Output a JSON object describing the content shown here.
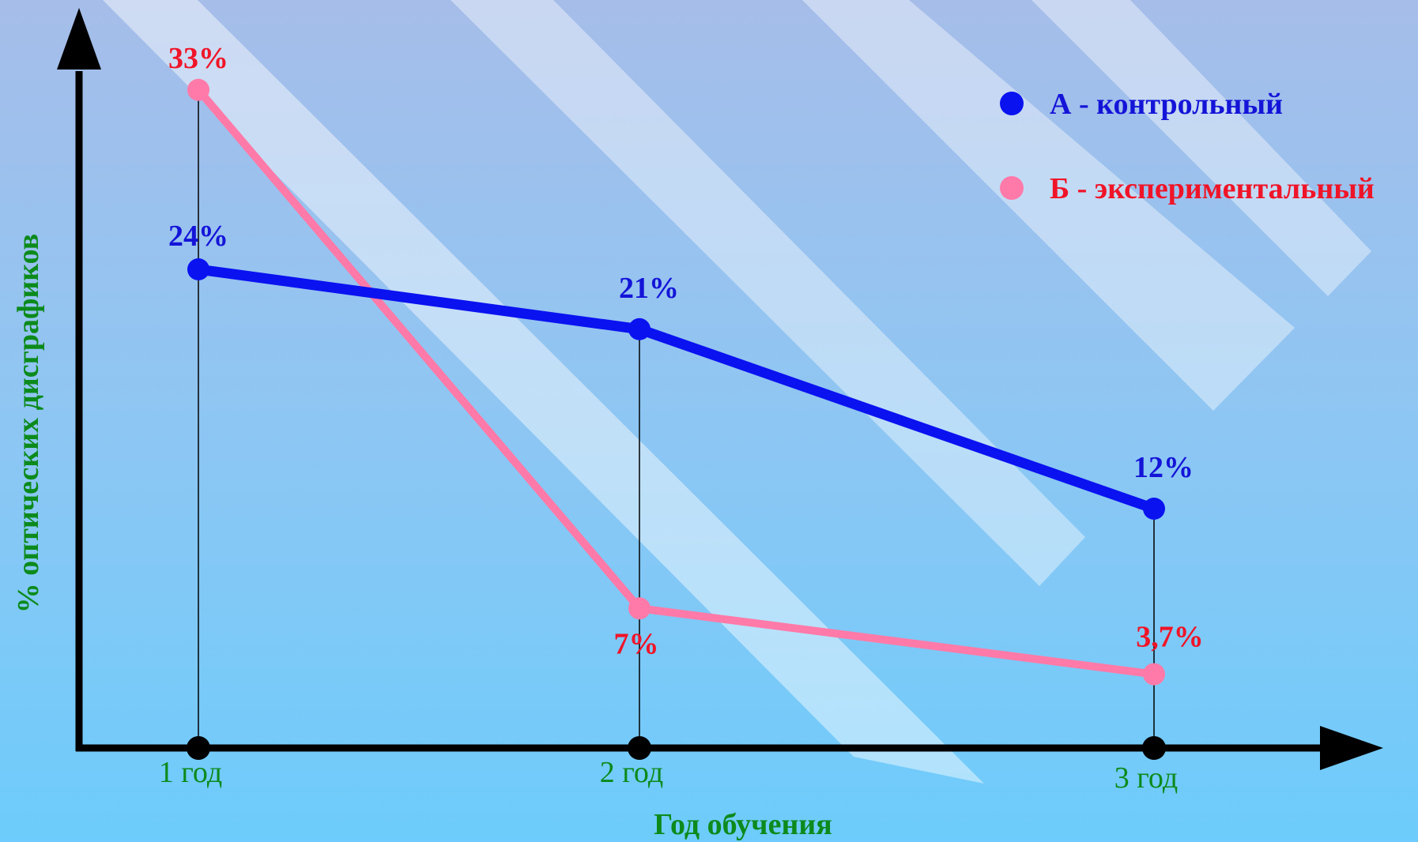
{
  "chart_data": {
    "type": "line",
    "categories": [
      "1 год",
      "2 год",
      "3 год"
    ],
    "xlabel": "Год обучения",
    "ylabel": "% оптических дисграфиков",
    "ylim": [
      0,
      36
    ],
    "grid": false,
    "legend_position": "top-right",
    "series": [
      {
        "name": "А - контрольный",
        "values": [
          24,
          21,
          12
        ],
        "labels": [
          "24%",
          "21%",
          "12%"
        ],
        "color": "#0a12f0",
        "label_color": "#1414d8"
      },
      {
        "name": "Б - экспериментальный",
        "values": [
          33,
          7,
          3.7
        ],
        "labels": [
          "33%",
          "7%",
          "3,7%"
        ],
        "color": "#ff7aa8",
        "label_color": "#f01428"
      }
    ],
    "axis_label_color": "#0c8a1c",
    "axis_color": "#000000"
  }
}
